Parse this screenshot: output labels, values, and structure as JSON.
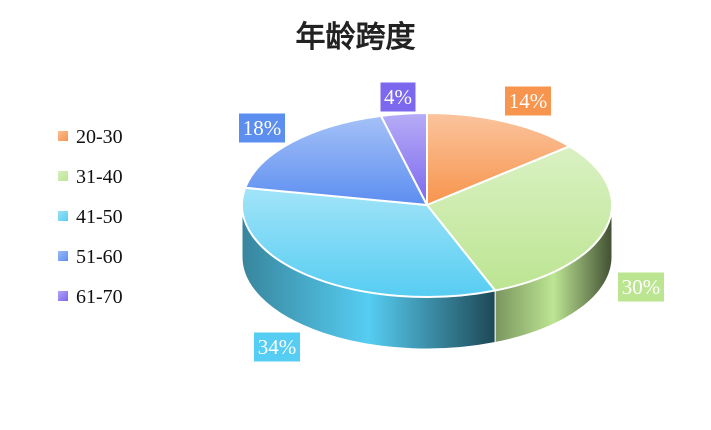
{
  "chart_data": {
    "type": "pie",
    "title": "年龄跨度",
    "legend_position": "left",
    "categories": [
      "20-30",
      "31-40",
      "41-50",
      "51-60",
      "61-70"
    ],
    "values": [
      14,
      30,
      34,
      18,
      4
    ],
    "labels": [
      "14%",
      "30%",
      "34%",
      "18%",
      "4%"
    ],
    "colors": [
      "#F7944D",
      "#BCE592",
      "#56CDF2",
      "#5C8EF0",
      "#7B68EE"
    ]
  }
}
